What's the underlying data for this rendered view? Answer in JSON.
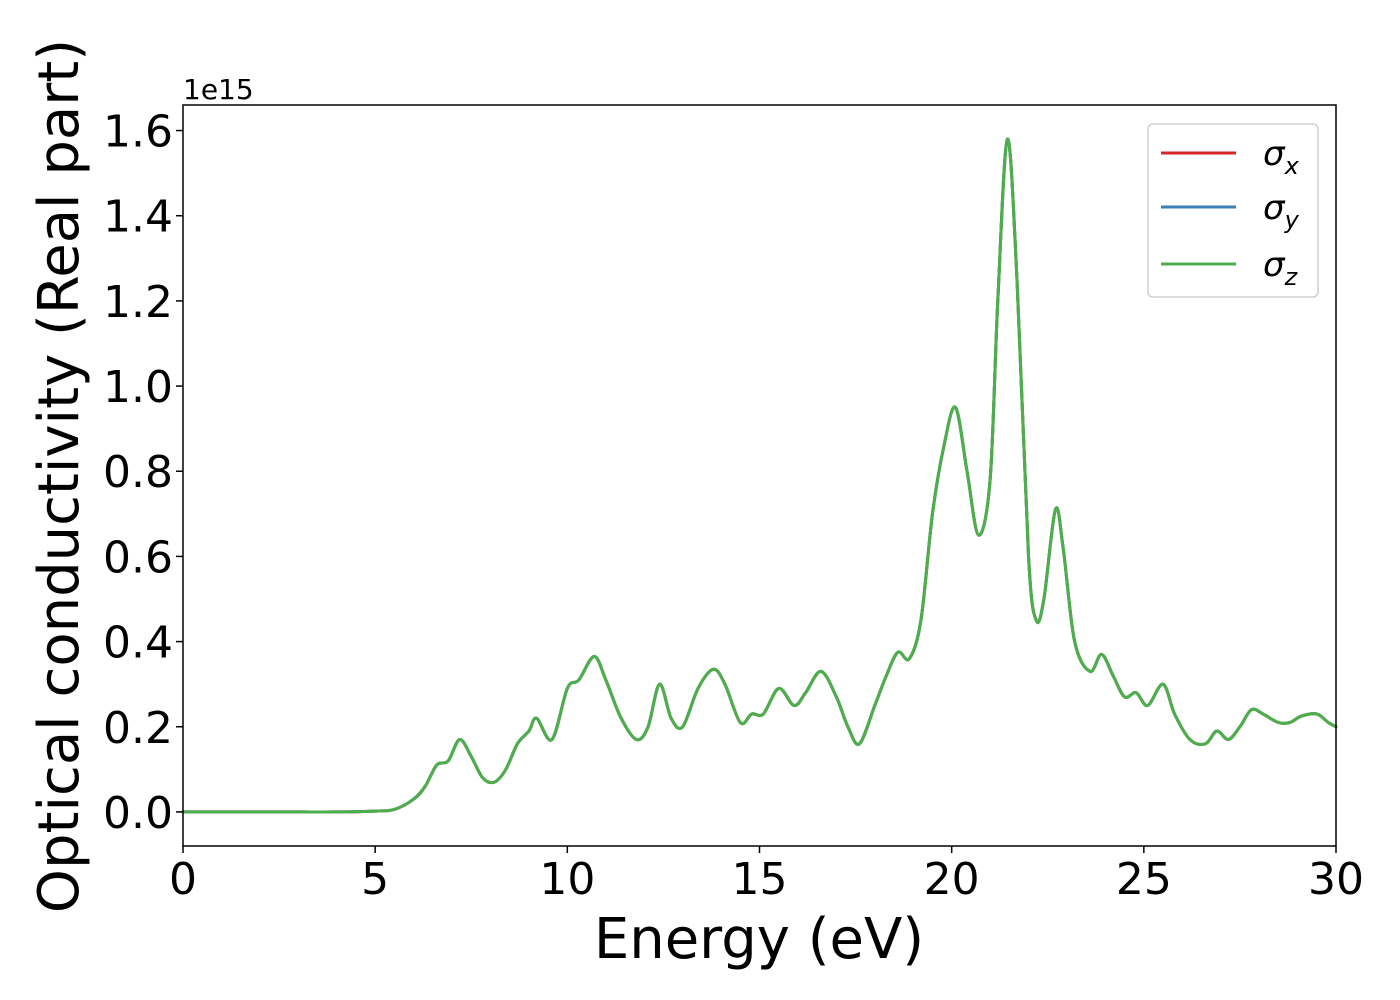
{
  "chart_data": {
    "type": "line",
    "xlabel": "Energy (eV)",
    "ylabel": "Optical conductivity (Real part)",
    "y_offset_label": "1e15",
    "xlim": [
      0,
      30
    ],
    "ylim": [
      -0.08,
      1.66
    ],
    "x_ticks": [
      0,
      5,
      10,
      15,
      20,
      25,
      30
    ],
    "x_tick_labels": [
      "0",
      "5",
      "10",
      "15",
      "20",
      "25",
      "30"
    ],
    "y_ticks": [
      0.0,
      0.2,
      0.4,
      0.6,
      0.8,
      1.0,
      1.2,
      1.4,
      1.6
    ],
    "y_tick_labels": [
      "0.0",
      "0.2",
      "0.4",
      "0.6",
      "0.8",
      "1.0",
      "1.2",
      "1.4",
      "1.6"
    ],
    "grid": false,
    "legend_position": "top-right",
    "x": [
      0,
      1,
      2,
      3,
      4,
      5,
      5.5,
      6.0,
      6.3,
      6.6,
      6.9,
      7.2,
      7.5,
      7.8,
      8.1,
      8.4,
      8.7,
      9.0,
      9.2,
      9.6,
      10.0,
      10.3,
      10.7,
      11.0,
      11.4,
      11.8,
      12.1,
      12.4,
      12.7,
      13.0,
      13.4,
      13.8,
      14.1,
      14.5,
      14.8,
      15.1,
      15.5,
      15.9,
      16.2,
      16.6,
      17.0,
      17.3,
      17.6,
      18.0,
      18.3,
      18.6,
      18.9,
      19.2,
      19.5,
      19.8,
      20.1,
      20.4,
      20.7,
      21.0,
      21.2,
      21.45,
      21.7,
      22.0,
      22.2,
      22.4,
      22.7,
      22.9,
      23.2,
      23.6,
      23.9,
      24.2,
      24.5,
      24.8,
      25.1,
      25.5,
      25.8,
      26.2,
      26.6,
      26.9,
      27.2,
      27.5,
      27.8,
      28.1,
      28.5,
      28.8,
      29.1,
      29.5,
      29.8,
      30.0
    ],
    "series": [
      {
        "name": "σx",
        "color": "#d62728",
        "values": [
          0.0,
          0.0,
          0.0,
          0.0,
          0.0,
          0.002,
          0.006,
          0.03,
          0.06,
          0.11,
          0.12,
          0.17,
          0.13,
          0.08,
          0.07,
          0.1,
          0.16,
          0.19,
          0.22,
          0.17,
          0.29,
          0.31,
          0.365,
          0.31,
          0.22,
          0.17,
          0.2,
          0.3,
          0.22,
          0.2,
          0.29,
          0.335,
          0.3,
          0.21,
          0.23,
          0.23,
          0.29,
          0.25,
          0.28,
          0.33,
          0.27,
          0.2,
          0.16,
          0.25,
          0.32,
          0.375,
          0.36,
          0.45,
          0.7,
          0.86,
          0.95,
          0.8,
          0.65,
          0.78,
          1.2,
          1.58,
          1.25,
          0.6,
          0.45,
          0.5,
          0.71,
          0.62,
          0.4,
          0.33,
          0.37,
          0.32,
          0.27,
          0.28,
          0.25,
          0.3,
          0.23,
          0.17,
          0.16,
          0.19,
          0.17,
          0.2,
          0.24,
          0.23,
          0.21,
          0.21,
          0.225,
          0.23,
          0.21,
          0.2
        ]
      },
      {
        "name": "σy",
        "color": "#3b7fb6",
        "values": [
          0.0,
          0.0,
          0.0,
          0.0,
          0.0,
          0.002,
          0.006,
          0.03,
          0.06,
          0.11,
          0.12,
          0.17,
          0.13,
          0.08,
          0.07,
          0.1,
          0.16,
          0.19,
          0.22,
          0.17,
          0.29,
          0.31,
          0.365,
          0.31,
          0.22,
          0.17,
          0.2,
          0.3,
          0.22,
          0.2,
          0.29,
          0.335,
          0.3,
          0.21,
          0.23,
          0.23,
          0.29,
          0.25,
          0.28,
          0.33,
          0.27,
          0.2,
          0.16,
          0.25,
          0.32,
          0.375,
          0.36,
          0.45,
          0.7,
          0.86,
          0.95,
          0.8,
          0.65,
          0.78,
          1.2,
          1.58,
          1.25,
          0.6,
          0.45,
          0.5,
          0.71,
          0.62,
          0.4,
          0.33,
          0.37,
          0.32,
          0.27,
          0.28,
          0.25,
          0.3,
          0.23,
          0.17,
          0.16,
          0.19,
          0.17,
          0.2,
          0.24,
          0.23,
          0.21,
          0.21,
          0.225,
          0.23,
          0.21,
          0.2
        ]
      },
      {
        "name": "σz",
        "color": "#4daf4a",
        "values": [
          0.0,
          0.0,
          0.0,
          0.0,
          0.0,
          0.002,
          0.006,
          0.03,
          0.06,
          0.11,
          0.12,
          0.17,
          0.13,
          0.08,
          0.07,
          0.1,
          0.16,
          0.19,
          0.22,
          0.17,
          0.29,
          0.31,
          0.365,
          0.31,
          0.22,
          0.17,
          0.2,
          0.3,
          0.22,
          0.2,
          0.29,
          0.335,
          0.3,
          0.21,
          0.23,
          0.23,
          0.29,
          0.25,
          0.28,
          0.33,
          0.27,
          0.2,
          0.16,
          0.25,
          0.32,
          0.375,
          0.36,
          0.45,
          0.7,
          0.86,
          0.95,
          0.8,
          0.65,
          0.78,
          1.2,
          1.58,
          1.25,
          0.6,
          0.45,
          0.5,
          0.71,
          0.62,
          0.4,
          0.33,
          0.37,
          0.32,
          0.27,
          0.28,
          0.25,
          0.3,
          0.23,
          0.17,
          0.16,
          0.19,
          0.17,
          0.2,
          0.24,
          0.23,
          0.21,
          0.21,
          0.225,
          0.23,
          0.21,
          0.2
        ]
      }
    ],
    "legend": {
      "entries": [
        {
          "symbol": "σ",
          "subscript": "x"
        },
        {
          "symbol": "σ",
          "subscript": "y"
        },
        {
          "symbol": "σ",
          "subscript": "z"
        }
      ]
    }
  }
}
